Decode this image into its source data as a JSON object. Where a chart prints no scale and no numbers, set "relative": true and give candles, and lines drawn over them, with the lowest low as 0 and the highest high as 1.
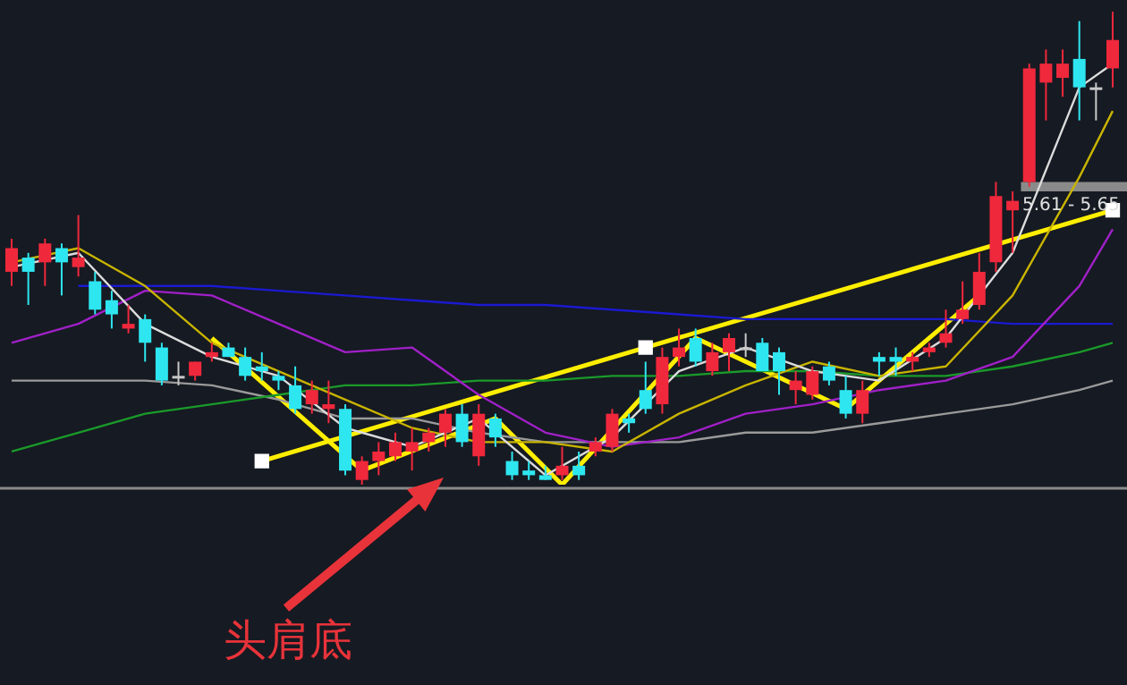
{
  "chart_data": {
    "type": "candlestick",
    "relative": true,
    "legend": false,
    "categories": [
      null,
      null,
      null,
      null,
      null,
      null,
      null,
      null,
      null,
      null,
      null,
      null,
      null,
      null,
      null,
      null,
      null,
      null,
      null,
      null,
      null,
      null,
      null,
      null,
      null,
      null,
      null,
      null,
      null,
      null,
      null,
      null,
      null,
      null,
      null,
      null,
      null,
      null,
      null,
      null,
      null,
      null,
      null,
      null,
      null,
      null,
      null,
      null,
      null,
      null,
      null,
      null,
      null,
      null,
      null,
      null,
      null,
      null,
      null,
      null,
      null,
      null,
      null,
      null,
      null,
      null,
      null
    ],
    "ohlc": [
      [
        0.45,
        0.52,
        0.42,
        0.5
      ],
      [
        0.48,
        0.49,
        0.38,
        0.45
      ],
      [
        0.47,
        0.52,
        0.42,
        0.51
      ],
      [
        0.5,
        0.51,
        0.4,
        0.47
      ],
      [
        0.46,
        0.57,
        0.44,
        0.48
      ],
      [
        0.43,
        0.45,
        0.36,
        0.37
      ],
      [
        0.39,
        0.41,
        0.33,
        0.36
      ],
      [
        0.33,
        0.38,
        0.32,
        0.34
      ],
      [
        0.35,
        0.36,
        0.26,
        0.3
      ],
      [
        0.29,
        0.3,
        0.21,
        0.22
      ],
      [
        0.23,
        0.26,
        0.21,
        0.23
      ],
      [
        0.23,
        0.26,
        0.22,
        0.26
      ],
      [
        0.27,
        0.3,
        0.26,
        0.28
      ],
      [
        0.29,
        0.3,
        0.27,
        0.27
      ],
      [
        0.27,
        0.29,
        0.22,
        0.23
      ],
      [
        0.25,
        0.28,
        0.22,
        0.24
      ],
      [
        0.23,
        0.24,
        0.2,
        0.22
      ],
      [
        0.21,
        0.25,
        0.15,
        0.16
      ],
      [
        0.17,
        0.22,
        0.15,
        0.2
      ],
      [
        0.16,
        0.22,
        0.13,
        0.17
      ],
      [
        0.16,
        0.17,
        0.02,
        0.03
      ],
      [
        0.01,
        0.06,
        0,
        0.05
      ],
      [
        0.05,
        0.09,
        0.02,
        0.07
      ],
      [
        0.06,
        0.11,
        0.05,
        0.09
      ],
      [
        0.07,
        0.12,
        0.03,
        0.09
      ],
      [
        0.09,
        0.12,
        0.07,
        0.11
      ],
      [
        0.11,
        0.16,
        0.08,
        0.15
      ],
      [
        0.15,
        0.17,
        0.08,
        0.09
      ],
      [
        0.06,
        0.17,
        0.04,
        0.15
      ],
      [
        0.14,
        0.15,
        0.08,
        0.1
      ],
      [
        0.05,
        0.07,
        0.01,
        0.02
      ],
      [
        0.03,
        0.05,
        0.01,
        0.02
      ],
      [
        0.02,
        0.04,
        0.01,
        0.01
      ],
      [
        0.02,
        0.08,
        0.01,
        0.04
      ],
      [
        0.04,
        0.07,
        0.01,
        0.02
      ],
      [
        0.07,
        0.1,
        0.06,
        0.09
      ],
      [
        0.08,
        0.16,
        0.07,
        0.15
      ],
      [
        0.14,
        0.15,
        0.11,
        0.13
      ],
      [
        0.2,
        0.26,
        0.15,
        0.16
      ],
      [
        0.17,
        0.29,
        0.15,
        0.27
      ],
      [
        0.27,
        0.33,
        0.25,
        0.29
      ],
      [
        0.31,
        0.33,
        0.25,
        0.26
      ],
      [
        0.24,
        0.3,
        0.23,
        0.28
      ],
      [
        0.28,
        0.32,
        0.24,
        0.31
      ],
      [
        0.29,
        0.32,
        0.27,
        0.29
      ],
      [
        0.3,
        0.31,
        0.24,
        0.24
      ],
      [
        0.28,
        0.29,
        0.19,
        0.24
      ],
      [
        0.2,
        0.24,
        0.17,
        0.22
      ],
      [
        0.19,
        0.25,
        0.18,
        0.24
      ],
      [
        0.25,
        0.26,
        0.21,
        0.22
      ],
      [
        0.2,
        0.23,
        0.14,
        0.15
      ],
      [
        0.15,
        0.22,
        0.13,
        0.2
      ],
      [
        0.27,
        0.28,
        0.23,
        0.26
      ],
      [
        0.27,
        0.29,
        0.23,
        0.26
      ],
      [
        0.26,
        0.28,
        0.24,
        0.27
      ],
      [
        0.28,
        0.3,
        0.27,
        0.29
      ],
      [
        0.3,
        0.37,
        0.29,
        0.32
      ],
      [
        0.35,
        0.43,
        0.34,
        0.37
      ],
      [
        0.38,
        0.49,
        0.37,
        0.45
      ],
      [
        0.47,
        0.64,
        0.45,
        0.61
      ],
      [
        0.58,
        0.62,
        0.49,
        0.6
      ],
      [
        0.64,
        0.89,
        0.63,
        0.88
      ],
      [
        0.85,
        0.92,
        0.77,
        0.89
      ],
      [
        0.86,
        0.92,
        0.82,
        0.89
      ],
      [
        0.9,
        0.98,
        0.77,
        0.84
      ],
      [
        0.84,
        0.85,
        0.77,
        0.84
      ],
      [
        0.88,
        1,
        0.84,
        0.94
      ]
    ],
    "colors": [
      "#f0283c",
      "#2ee6f0",
      "#f0283c",
      "#2ee6f0",
      "#f0283c",
      "#2ee6f0",
      "#2ee6f0",
      "#f0283c",
      "#2ee6f0",
      "#2ee6f0",
      "#c8c8c8",
      "#f0283c",
      "#f0283c",
      "#2ee6f0",
      "#2ee6f0",
      "#2ee6f0",
      "#2ee6f0",
      "#2ee6f0",
      "#f0283c",
      "#f0283c",
      "#2ee6f0",
      "#f0283c",
      "#f0283c",
      "#f0283c",
      "#f0283c",
      "#f0283c",
      "#f0283c",
      "#2ee6f0",
      "#f0283c",
      "#2ee6f0",
      "#2ee6f0",
      "#2ee6f0",
      "#2ee6f0",
      "#f0283c",
      "#2ee6f0",
      "#f0283c",
      "#f0283c",
      "#2ee6f0",
      "#2ee6f0",
      "#f0283c",
      "#f0283c",
      "#2ee6f0",
      "#f0283c",
      "#f0283c",
      "#c8c8c8",
      "#2ee6f0",
      "#2ee6f0",
      "#f0283c",
      "#f0283c",
      "#2ee6f0",
      "#2ee6f0",
      "#f0283c",
      "#2ee6f0",
      "#2ee6f0",
      "#f0283c",
      "#f0283c",
      "#f0283c",
      "#f0283c",
      "#f0283c",
      "#f0283c",
      "#f0283c",
      "#f0283c",
      "#f0283c",
      "#f0283c",
      "#2ee6f0",
      "#c8c8c8",
      "#f0283c"
    ],
    "series": [
      {
        "type": "line",
        "color": "#dcdcdc",
        "values": [
          0.46,
          null,
          null,
          null,
          0.49,
          null,
          null,
          null,
          0.34,
          null,
          null,
          null,
          0.27,
          null,
          null,
          null,
          0.23,
          null,
          null,
          null,
          0.12,
          null,
          null,
          null,
          0.08,
          null,
          null,
          null,
          0.14,
          null,
          null,
          null,
          0.02,
          null,
          null,
          null,
          0.1,
          null,
          null,
          null,
          0.24,
          null,
          null,
          null,
          0.29,
          null,
          null,
          null,
          0.24,
          null,
          null,
          null,
          0.22,
          null,
          null,
          null,
          0.31,
          null,
          null,
          null,
          0.49,
          null,
          null,
          null,
          0.84,
          null,
          0.89
        ]
      },
      {
        "type": "line",
        "color": "#c8b400",
        "values": [
          0.47,
          null,
          null,
          null,
          0.5,
          null,
          null,
          null,
          0.42,
          null,
          null,
          null,
          0.3,
          null,
          null,
          null,
          0.24,
          null,
          null,
          null,
          0.18,
          null,
          null,
          null,
          0.12,
          null,
          null,
          null,
          0.09,
          null,
          null,
          null,
          0.09,
          null,
          null,
          null,
          0.07,
          null,
          null,
          null,
          0.15,
          null,
          null,
          null,
          0.21,
          null,
          null,
          null,
          0.26,
          null,
          null,
          null,
          0.23,
          null,
          null,
          null,
          0.25,
          null,
          null,
          null,
          0.4,
          null,
          null,
          null,
          0.65,
          null,
          0.79
        ]
      },
      {
        "type": "line",
        "color": "#a020c8",
        "values": [
          0.3,
          null,
          null,
          null,
          0.34,
          null,
          null,
          null,
          0.41,
          null,
          null,
          null,
          0.4,
          null,
          null,
          null,
          0.34,
          null,
          null,
          null,
          0.28,
          null,
          null,
          null,
          0.29,
          null,
          null,
          null,
          0.19,
          null,
          null,
          null,
          0.11,
          null,
          null,
          null,
          0.08,
          null,
          null,
          null,
          0.1,
          null,
          null,
          null,
          0.15,
          null,
          null,
          null,
          0.17,
          null,
          null,
          null,
          0.2,
          null,
          null,
          null,
          0.22,
          null,
          null,
          null,
          0.27,
          null,
          null,
          null,
          0.42,
          null,
          0.54
        ]
      },
      {
        "type": "line",
        "color": "#1a9a2a",
        "values": [
          0.07,
          null,
          null,
          null,
          0.11,
          null,
          null,
          null,
          0.15,
          null,
          null,
          null,
          0.17,
          null,
          null,
          null,
          0.19,
          null,
          null,
          null,
          0.21,
          null,
          null,
          null,
          0.21,
          null,
          null,
          null,
          0.22,
          null,
          null,
          null,
          0.22,
          null,
          null,
          null,
          0.23,
          null,
          null,
          null,
          0.23,
          null,
          null,
          null,
          0.24,
          null,
          null,
          null,
          0.24,
          null,
          null,
          null,
          0.23,
          null,
          null,
          null,
          0.23,
          null,
          null,
          null,
          0.25,
          null,
          null,
          null,
          0.28,
          null,
          0.3
        ]
      },
      {
        "type": "line",
        "color": "#1a1ad0",
        "values": [
          null,
          null,
          null,
          null,
          0.42,
          null,
          null,
          null,
          0.42,
          null,
          null,
          null,
          0.42,
          null,
          null,
          null,
          0.41,
          null,
          null,
          null,
          0.4,
          null,
          null,
          null,
          0.39,
          null,
          null,
          null,
          0.38,
          null,
          null,
          null,
          0.38,
          null,
          null,
          null,
          0.37,
          null,
          null,
          null,
          0.36,
          null,
          null,
          null,
          0.35,
          null,
          null,
          null,
          0.35,
          null,
          null,
          null,
          0.35,
          null,
          null,
          null,
          0.35,
          null,
          null,
          null,
          0.34,
          null,
          null,
          null,
          0.34,
          null,
          0.34
        ]
      },
      {
        "type": "line",
        "color": "#9a9a9a",
        "values": [
          0.22,
          null,
          null,
          null,
          0.22,
          null,
          null,
          null,
          0.22,
          null,
          null,
          null,
          0.21,
          null,
          null,
          null,
          0.18,
          null,
          null,
          null,
          0.14,
          null,
          null,
          null,
          0.14,
          null,
          null,
          null,
          0.11,
          null,
          null,
          null,
          0.09,
          null,
          null,
          null,
          0.09,
          null,
          null,
          null,
          0.09,
          null,
          null,
          null,
          0.11,
          null,
          null,
          null,
          0.11,
          null,
          null,
          null,
          0.13,
          null,
          null,
          null,
          0.15,
          null,
          null,
          null,
          0.17,
          null,
          null,
          null,
          0.2,
          null,
          0.22
        ]
      },
      {
        "type": "line",
        "color": "#ffee00",
        "marker": "none",
        "values": [
          null,
          null,
          null,
          null,
          null,
          null,
          null,
          null,
          null,
          null,
          null,
          null,
          0.31,
          null,
          null,
          null,
          null,
          null,
          null,
          null,
          null,
          0.03,
          null,
          null,
          null,
          null,
          null,
          null,
          null,
          0.14,
          null,
          null,
          null,
          0,
          null,
          null,
          null,
          null,
          null,
          null,
          null,
          0.31,
          null,
          null,
          null,
          null,
          null,
          null,
          null,
          null,
          0.16,
          null,
          null,
          null,
          null,
          null,
          null,
          null,
          0.4,
          null,
          null,
          null,
          null,
          null,
          null,
          null,
          null
        ]
      },
      {
        "type": "line",
        "color": "#ffee00",
        "marker": "square",
        "values": [
          null,
          null,
          null,
          null,
          null,
          null,
          null,
          null,
          null,
          null,
          null,
          null,
          null,
          null,
          null,
          0.05,
          null,
          null,
          null,
          null,
          null,
          null,
          null,
          null,
          null,
          null,
          null,
          null,
          null,
          null,
          null,
          null,
          null,
          null,
          null,
          null,
          null,
          null,
          0.29,
          null,
          null,
          null,
          null,
          null,
          null,
          null,
          null,
          null,
          null,
          null,
          null,
          null,
          null,
          null,
          null,
          null,
          null,
          null,
          null,
          null,
          null,
          null,
          null,
          null,
          null,
          null,
          0.58
        ]
      }
    ],
    "bands": [
      {
        "axis": "y",
        "from": 0.62,
        "to": 0.64,
        "label": "5.61 - 5.65",
        "color": "#8a8a8a"
      }
    ],
    "annotations": [
      "头肩底"
    ]
  }
}
